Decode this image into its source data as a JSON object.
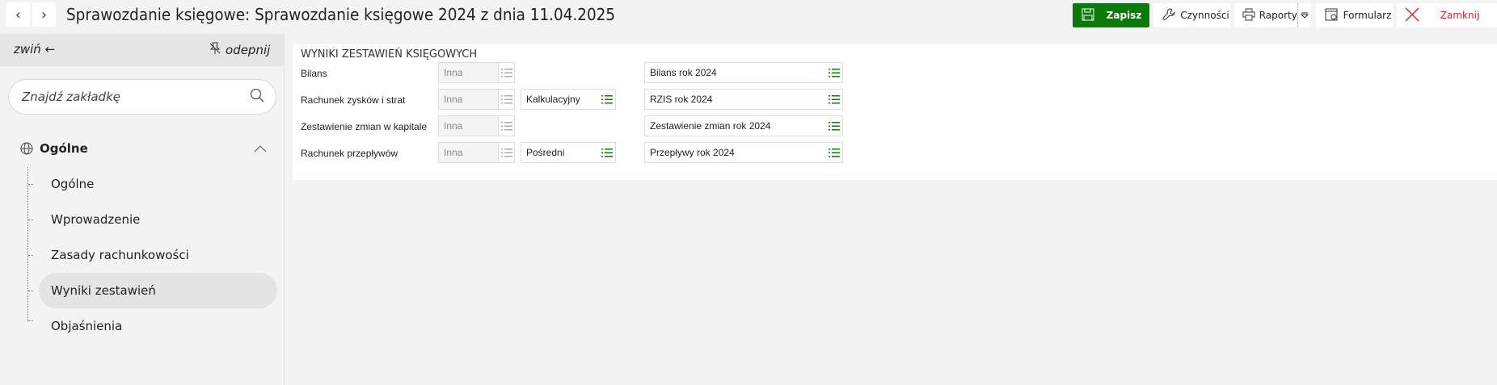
{
  "header": {
    "title": "Sprawozdanie księgowe: Sprawozdanie księgowe 2024 z dnia 11.04.2025"
  },
  "toolbar": {
    "save": "Zapisz",
    "actions": "Czynności",
    "reports": "Raporty",
    "form": "Formularz",
    "close": "Zamknij"
  },
  "colors": {
    "accent": "#0a7a0a",
    "close": "#e0262c"
  },
  "sidebar": {
    "collapse": "zwiń",
    "unpin": "odepnij",
    "search_placeholder": "Znajdź zakładkę",
    "group": "Ogólne",
    "items": [
      {
        "label": "Ogólne"
      },
      {
        "label": "Wprowadzenie"
      },
      {
        "label": "Zasady rachunkowości"
      },
      {
        "label": "Wyniki zestawień",
        "selected": true
      },
      {
        "label": "Objaśnienia"
      }
    ]
  },
  "main": {
    "section_title": "WYNIKI ZESTAWIEŃ KSIĘGOWYCH",
    "rows": [
      {
        "label": "Bilans",
        "type": "Inna",
        "variant": "",
        "definition": "Bilans rok 2024"
      },
      {
        "label": "Rachunek zysków i strat",
        "type": "Inna",
        "variant": "Kalkulacyjny",
        "definition": "RZIS rok 2024"
      },
      {
        "label": "Zestawienie zmian w kapitale",
        "type": "Inna",
        "variant": "",
        "definition": "Zestawienie zmian rok 2024"
      },
      {
        "label": "Rachunek przepływów",
        "type": "Inna",
        "variant": "Pośredni",
        "definition": "Przepływy rok 2024"
      }
    ]
  }
}
